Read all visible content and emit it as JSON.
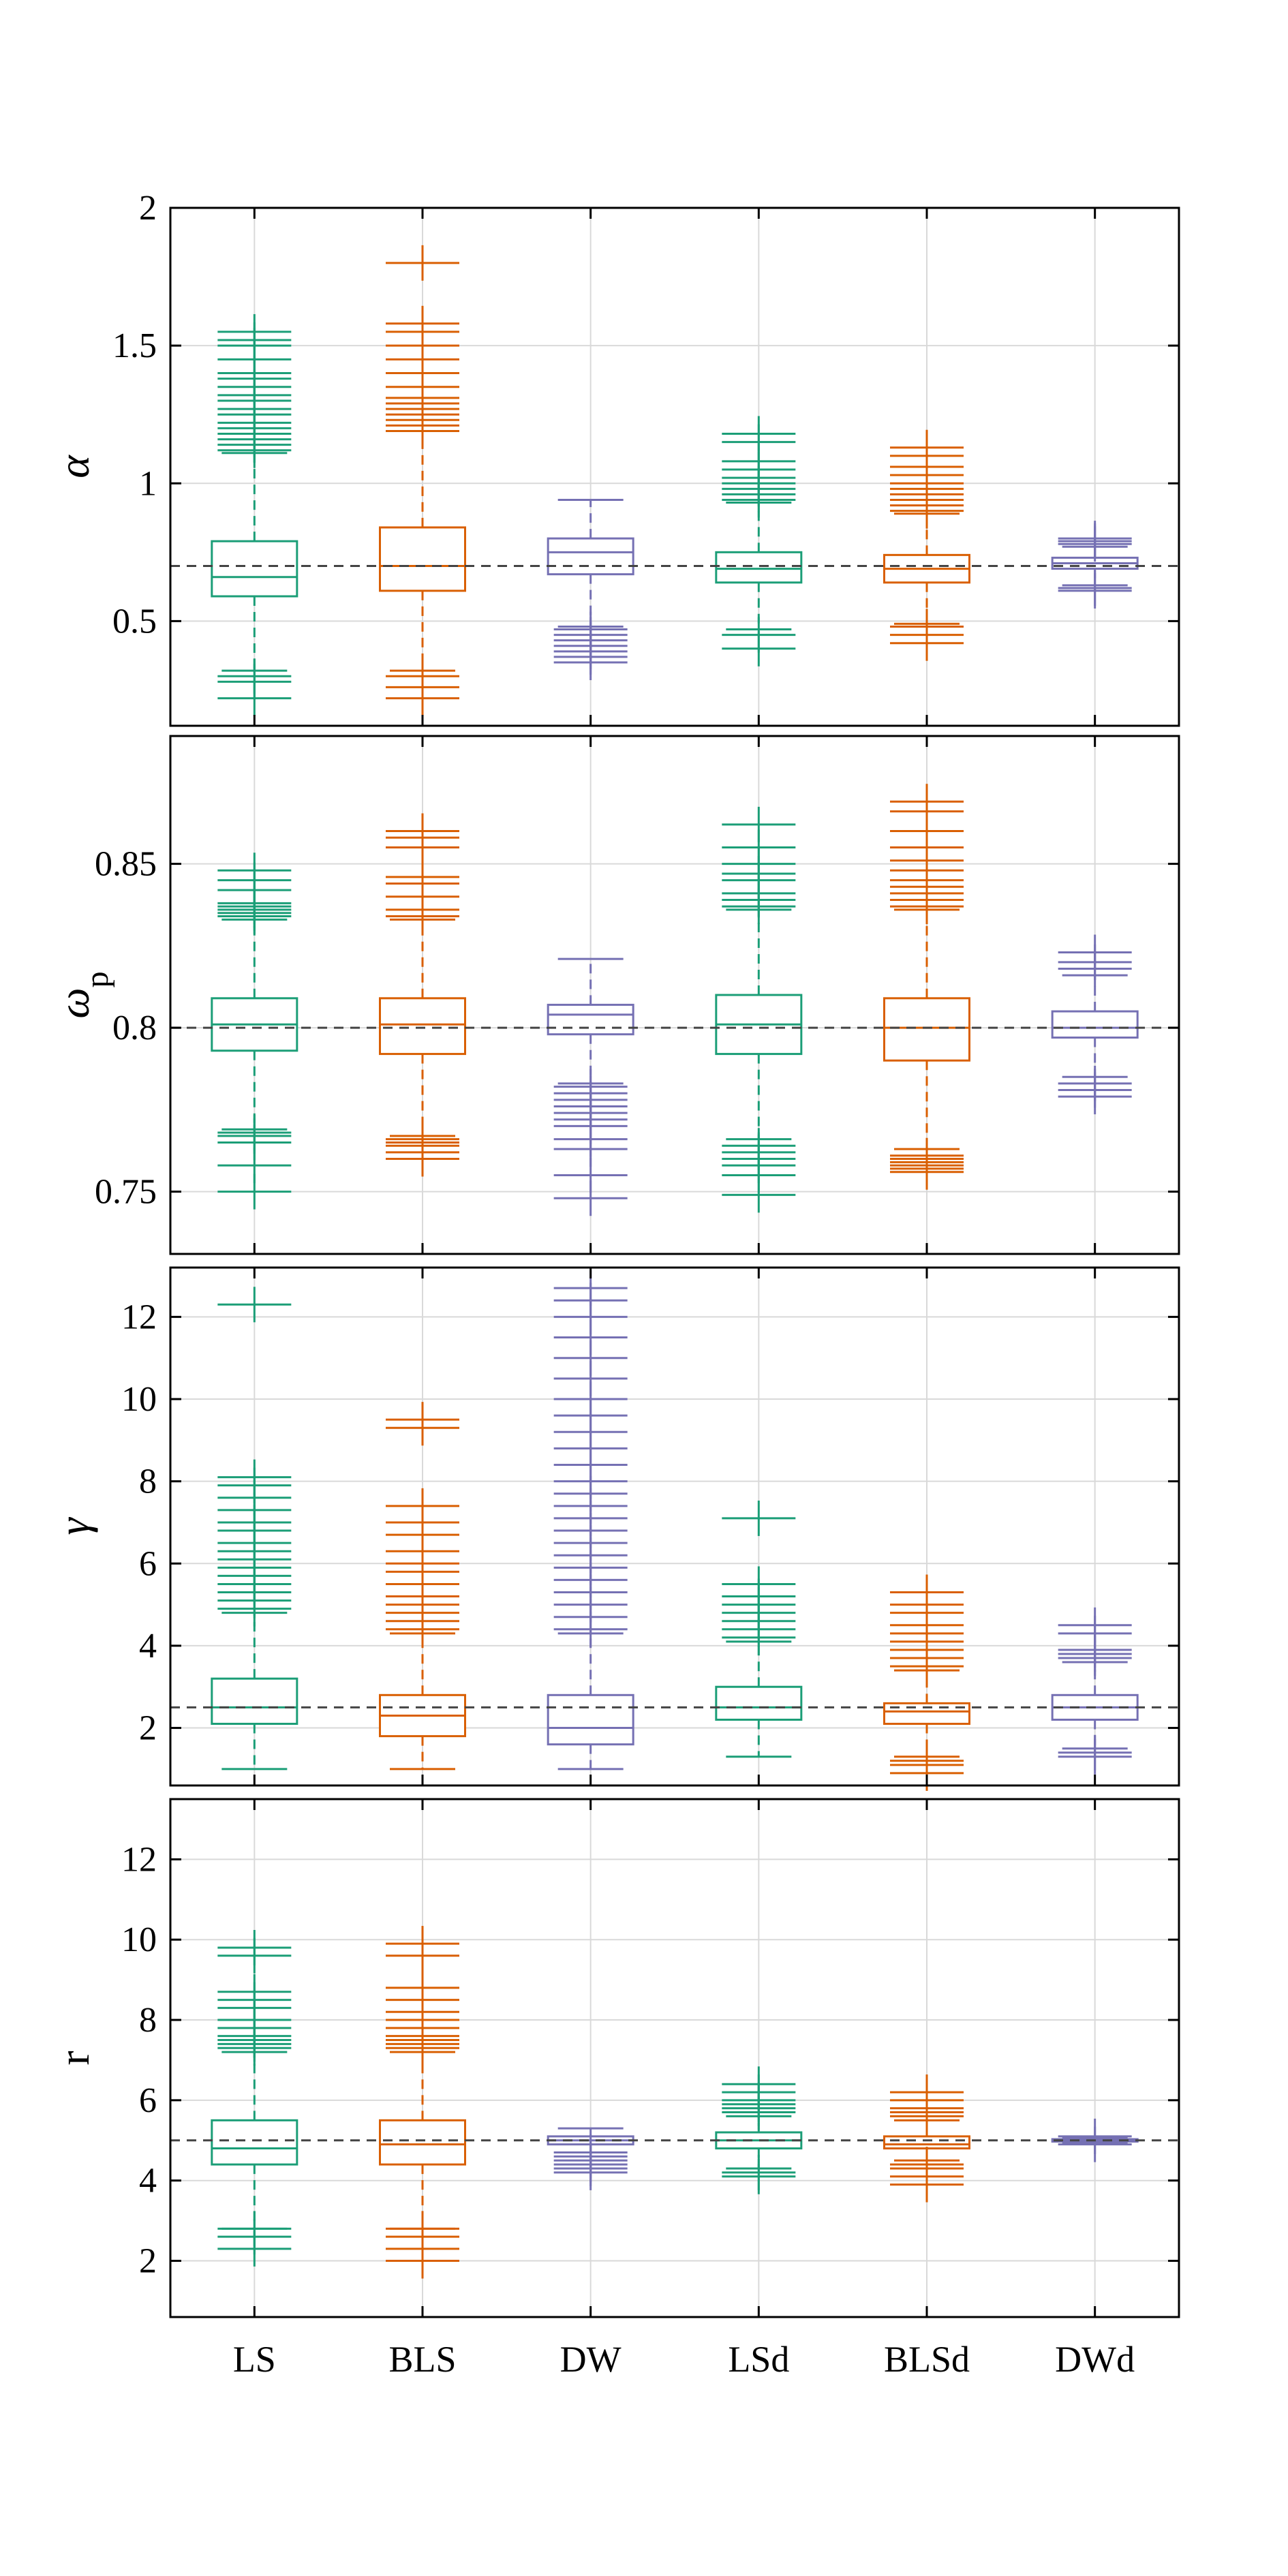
{
  "chart_data": [
    {
      "type": "box",
      "ylabel": "α",
      "ylim": [
        0.12,
        2.0
      ],
      "yticks": [
        0.5,
        1,
        1.5,
        2
      ],
      "yticklabels": [
        "0.5",
        "1",
        "1.5",
        "2"
      ],
      "reference_line": 0.7,
      "categories": [
        "LS",
        "BLS",
        "DW",
        "LSd",
        "BLSd",
        "DWd"
      ],
      "boxes": [
        {
          "q1": 0.59,
          "median": 0.66,
          "mean": 0.7,
          "q3": 0.79,
          "whisker_low": 0.32,
          "whisker_high": 1.11,
          "outliers": [
            0.22,
            0.28,
            0.3,
            1.12,
            1.14,
            1.16,
            1.18,
            1.2,
            1.22,
            1.25,
            1.27,
            1.3,
            1.32,
            1.35,
            1.38,
            1.4,
            1.45,
            1.5,
            1.52,
            1.55
          ]
        },
        {
          "q1": 0.61,
          "median": 0.7,
          "mean": 0.7,
          "q3": 0.84,
          "whisker_low": 0.32,
          "whisker_high": 1.19,
          "outliers": [
            0.22,
            0.26,
            0.3,
            1.19,
            1.21,
            1.23,
            1.25,
            1.27,
            1.29,
            1.31,
            1.35,
            1.4,
            1.45,
            1.5,
            1.55,
            1.58,
            1.8
          ]
        },
        {
          "q1": 0.67,
          "median": 0.75,
          "mean": 0.71,
          "q3": 0.8,
          "whisker_low": 0.48,
          "whisker_high": 0.94,
          "outliers": [
            0.35,
            0.37,
            0.39,
            0.41,
            0.43,
            0.45,
            0.47
          ]
        },
        {
          "q1": 0.64,
          "median": 0.69,
          "mean": 0.7,
          "q3": 0.75,
          "whisker_low": 0.47,
          "whisker_high": 0.93,
          "outliers": [
            0.4,
            0.45,
            0.94,
            0.96,
            0.98,
            1.0,
            1.02,
            1.05,
            1.08,
            1.15,
            1.18
          ]
        },
        {
          "q1": 0.64,
          "median": 0.69,
          "mean": 0.7,
          "q3": 0.74,
          "whisker_low": 0.49,
          "whisker_high": 0.89,
          "outliers": [
            0.42,
            0.45,
            0.48,
            0.9,
            0.92,
            0.94,
            0.96,
            0.98,
            1.0,
            1.03,
            1.06,
            1.1,
            1.13
          ]
        },
        {
          "q1": 0.69,
          "median": 0.71,
          "mean": 0.7,
          "q3": 0.73,
          "whisker_low": 0.63,
          "whisker_high": 0.77,
          "outliers": [
            0.61,
            0.62,
            0.78,
            0.79,
            0.8
          ]
        }
      ]
    },
    {
      "type": "box",
      "ylabel": "ω",
      "ylabel_subscript": "p",
      "ylim": [
        0.731,
        0.889
      ],
      "yticks": [
        0.75,
        0.8,
        0.85
      ],
      "yticklabels": [
        "0.75",
        "0.8",
        "0.85"
      ],
      "reference_line": 0.8,
      "categories": [
        "LS",
        "BLS",
        "DW",
        "LSd",
        "BLSd",
        "DWd"
      ],
      "boxes": [
        {
          "q1": 0.793,
          "median": 0.801,
          "mean": 0.8,
          "q3": 0.809,
          "whisker_low": 0.769,
          "whisker_high": 0.833,
          "outliers": [
            0.75,
            0.758,
            0.765,
            0.767,
            0.768,
            0.834,
            0.835,
            0.836,
            0.837,
            0.838,
            0.842,
            0.845,
            0.848
          ]
        },
        {
          "q1": 0.792,
          "median": 0.801,
          "mean": 0.8,
          "q3": 0.809,
          "whisker_low": 0.767,
          "whisker_high": 0.833,
          "outliers": [
            0.76,
            0.762,
            0.764,
            0.765,
            0.766,
            0.834,
            0.836,
            0.84,
            0.844,
            0.846,
            0.855,
            0.858,
            0.86
          ]
        },
        {
          "q1": 0.798,
          "median": 0.804,
          "mean": 0.8,
          "q3": 0.807,
          "whisker_low": 0.783,
          "whisker_high": 0.821,
          "outliers": [
            0.748,
            0.755,
            0.763,
            0.766,
            0.77,
            0.772,
            0.774,
            0.776,
            0.778,
            0.78,
            0.782
          ]
        },
        {
          "q1": 0.792,
          "median": 0.801,
          "mean": 0.8,
          "q3": 0.81,
          "whisker_low": 0.766,
          "whisker_high": 0.836,
          "outliers": [
            0.749,
            0.755,
            0.758,
            0.76,
            0.762,
            0.764,
            0.837,
            0.839,
            0.841,
            0.845,
            0.847,
            0.85,
            0.855,
            0.862
          ]
        },
        {
          "q1": 0.79,
          "median": 0.8,
          "mean": 0.8,
          "q3": 0.809,
          "whisker_low": 0.763,
          "whisker_high": 0.836,
          "outliers": [
            0.756,
            0.757,
            0.758,
            0.759,
            0.76,
            0.761,
            0.837,
            0.839,
            0.841,
            0.843,
            0.845,
            0.848,
            0.851,
            0.855,
            0.86,
            0.866,
            0.869
          ]
        },
        {
          "q1": 0.797,
          "median": 0.8,
          "mean": 0.8,
          "q3": 0.805,
          "whisker_low": 0.785,
          "whisker_high": 0.816,
          "outliers": [
            0.779,
            0.781,
            0.783,
            0.818,
            0.82,
            0.823
          ]
        }
      ]
    },
    {
      "type": "box",
      "ylabel": "γ",
      "ylim": [
        0.6,
        13.2
      ],
      "yticks": [
        2,
        4,
        6,
        8,
        10,
        12
      ],
      "yticklabels": [
        "2",
        "4",
        "6",
        "8",
        "10",
        "12"
      ],
      "reference_line": 2.5,
      "categories": [
        "LS",
        "BLS",
        "DW",
        "LSd",
        "BLSd",
        "DWd"
      ],
      "boxes": [
        {
          "q1": 2.1,
          "median": 2.5,
          "mean": 2.5,
          "q3": 3.2,
          "whisker_low": 1.0,
          "whisker_high": 4.8,
          "outliers": [
            4.9,
            5.1,
            5.3,
            5.5,
            5.7,
            5.9,
            6.1,
            6.3,
            6.5,
            6.8,
            7.0,
            7.3,
            7.6,
            7.9,
            8.1,
            12.3
          ]
        },
        {
          "q1": 1.8,
          "median": 2.3,
          "mean": 2.5,
          "q3": 2.8,
          "whisker_low": 1.0,
          "whisker_high": 4.3,
          "outliers": [
            4.4,
            4.6,
            4.8,
            5.0,
            5.2,
            5.5,
            5.8,
            6.0,
            6.3,
            6.7,
            7.0,
            7.4,
            9.3,
            9.5
          ]
        },
        {
          "q1": 1.6,
          "median": 2.0,
          "mean": 2.5,
          "q3": 2.8,
          "whisker_low": 1.0,
          "whisker_high": 4.3,
          "outliers": [
            4.4,
            4.7,
            5.0,
            5.3,
            5.6,
            5.9,
            6.2,
            6.5,
            6.8,
            7.1,
            7.4,
            7.7,
            8.0,
            8.4,
            8.8,
            9.2,
            9.6,
            10.0,
            10.5,
            11.0,
            11.5,
            12.0,
            12.4,
            12.7
          ]
        },
        {
          "q1": 2.2,
          "median": 2.5,
          "mean": 2.5,
          "q3": 3.0,
          "whisker_low": 1.3,
          "whisker_high": 4.1,
          "outliers": [
            4.2,
            4.4,
            4.6,
            4.8,
            5.0,
            5.2,
            5.5,
            7.1
          ]
        },
        {
          "q1": 2.1,
          "median": 2.4,
          "mean": 2.5,
          "q3": 2.6,
          "whisker_low": 1.3,
          "whisker_high": 3.4,
          "outliers": [
            0.9,
            1.1,
            1.2,
            3.5,
            3.7,
            3.9,
            4.1,
            4.3,
            4.5,
            4.8,
            5.0,
            5.3
          ]
        },
        {
          "q1": 2.2,
          "median": 2.5,
          "mean": 2.5,
          "q3": 2.8,
          "whisker_low": 1.5,
          "whisker_high": 3.6,
          "outliers": [
            1.3,
            1.4,
            3.7,
            3.8,
            3.9,
            4.3,
            4.5
          ]
        }
      ]
    },
    {
      "type": "box",
      "ylabel": "r",
      "ylim": [
        0.6,
        13.5
      ],
      "yticks": [
        2,
        4,
        6,
        8,
        10,
        12
      ],
      "yticklabels": [
        "2",
        "4",
        "6",
        "8",
        "10",
        "12"
      ],
      "reference_line": 5.0,
      "categories": [
        "LS",
        "BLS",
        "DW",
        "LSd",
        "BLSd",
        "DWd"
      ],
      "boxes": [
        {
          "q1": 4.4,
          "median": 4.8,
          "mean": 5.0,
          "q3": 5.5,
          "whisker_low": 2.8,
          "whisker_high": 7.2,
          "outliers": [
            2.3,
            2.6,
            2.8,
            7.3,
            7.4,
            7.5,
            7.6,
            7.8,
            8.0,
            8.3,
            8.5,
            8.7,
            9.6,
            9.8
          ]
        },
        {
          "q1": 4.4,
          "median": 4.9,
          "mean": 5.0,
          "q3": 5.5,
          "whisker_low": 2.8,
          "whisker_high": 7.2,
          "outliers": [
            2.0,
            2.3,
            2.6,
            2.8,
            7.3,
            7.4,
            7.5,
            7.6,
            7.8,
            8.0,
            8.2,
            8.5,
            8.8,
            9.6,
            9.9
          ]
        },
        {
          "q1": 4.9,
          "median": 5.0,
          "mean": 5.0,
          "q3": 5.1,
          "whisker_low": 4.7,
          "whisker_high": 5.3,
          "outliers": [
            4.2,
            4.3,
            4.4,
            4.5,
            4.6,
            4.7
          ]
        },
        {
          "q1": 4.8,
          "median": 5.0,
          "mean": 5.0,
          "q3": 5.2,
          "whisker_low": 4.3,
          "whisker_high": 5.6,
          "outliers": [
            4.1,
            4.2,
            5.7,
            5.8,
            5.9,
            6.0,
            6.2,
            6.4
          ]
        },
        {
          "q1": 4.8,
          "median": 4.9,
          "mean": 5.0,
          "q3": 5.1,
          "whisker_low": 4.5,
          "whisker_high": 5.5,
          "outliers": [
            3.9,
            4.1,
            4.3,
            4.4,
            5.6,
            5.7,
            5.8,
            6.0,
            6.2
          ]
        },
        {
          "q1": 4.97,
          "median": 5.0,
          "mean": 5.0,
          "q3": 5.03,
          "whisker_low": 4.92,
          "whisker_high": 5.08,
          "outliers": [
            4.9,
            5.1
          ]
        }
      ]
    }
  ],
  "colors": {
    "series": [
      "#1b9e77",
      "#d95f02",
      "#7570b3",
      "#1b9e77",
      "#d95f02",
      "#7570b3"
    ],
    "reference_line": "#444444",
    "grid": "#d9d9d9",
    "axes": "#000000"
  }
}
